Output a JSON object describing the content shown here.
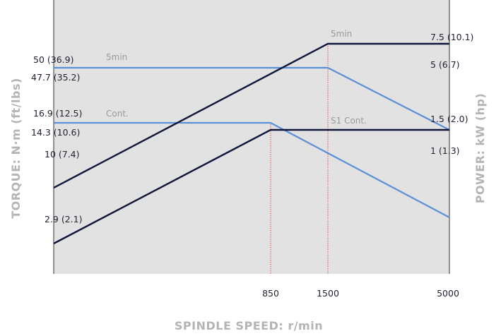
{
  "chart_data": {
    "type": "line",
    "xlabel": "SPINDLE SPEED: r/min",
    "ylabel_left": "TORQUE: N·m (ft/lbs)",
    "ylabel_right": "POWER: kW (hp)",
    "x_ticks": [
      "850",
      "1500",
      "5000"
    ],
    "x_tick_values": [
      850,
      1500,
      5000
    ],
    "x_reference_lines": [
      850,
      1500
    ],
    "torque_ticks": [
      "50 (36.9)",
      "47.7 (35.2)",
      "16.9 (12.5)",
      "14.3 (10.6)",
      "10 (7.4)",
      "2.9 (2.1)"
    ],
    "power_ticks": [
      "7.5 (10.1)",
      "5 (6.7)",
      "1.5 (2.0)",
      "1 (1.3)"
    ],
    "series": [
      {
        "name": "5min",
        "quantity": "torque",
        "color": "#5b8fd6",
        "points": [
          {
            "x": 0,
            "y": 47.7
          },
          {
            "x": 1500,
            "y": 47.7
          },
          {
            "x": 5000,
            "y": 14.3
          }
        ]
      },
      {
        "name": "Cont.",
        "quantity": "torque",
        "color": "#5b8fd6",
        "points": [
          {
            "x": 0,
            "y": 16.9
          },
          {
            "x": 850,
            "y": 16.9
          },
          {
            "x": 5000,
            "y": 2.9
          }
        ]
      },
      {
        "name": "5min",
        "quantity": "power",
        "color": "#10163a",
        "points": [
          {
            "x": 0,
            "y": 2.5
          },
          {
            "x": 1500,
            "y": 7.5
          },
          {
            "x": 5000,
            "y": 7.5
          }
        ]
      },
      {
        "name": "S1 Cont.",
        "quantity": "power",
        "color": "#10163a",
        "points": [
          {
            "x": 0,
            "y": 0.8
          },
          {
            "x": 850,
            "y": 1.5
          },
          {
            "x": 5000,
            "y": 1.5
          }
        ]
      }
    ],
    "series_labels": [
      "5min",
      "Cont.",
      "5min",
      "S1 Cont."
    ],
    "colors": {
      "plot_background": "#e2e2e2",
      "torque_line": "#5b8fd6",
      "power_line": "#10163a",
      "reference_line": "#e05050",
      "axis_title": "#b4b4b4"
    }
  }
}
